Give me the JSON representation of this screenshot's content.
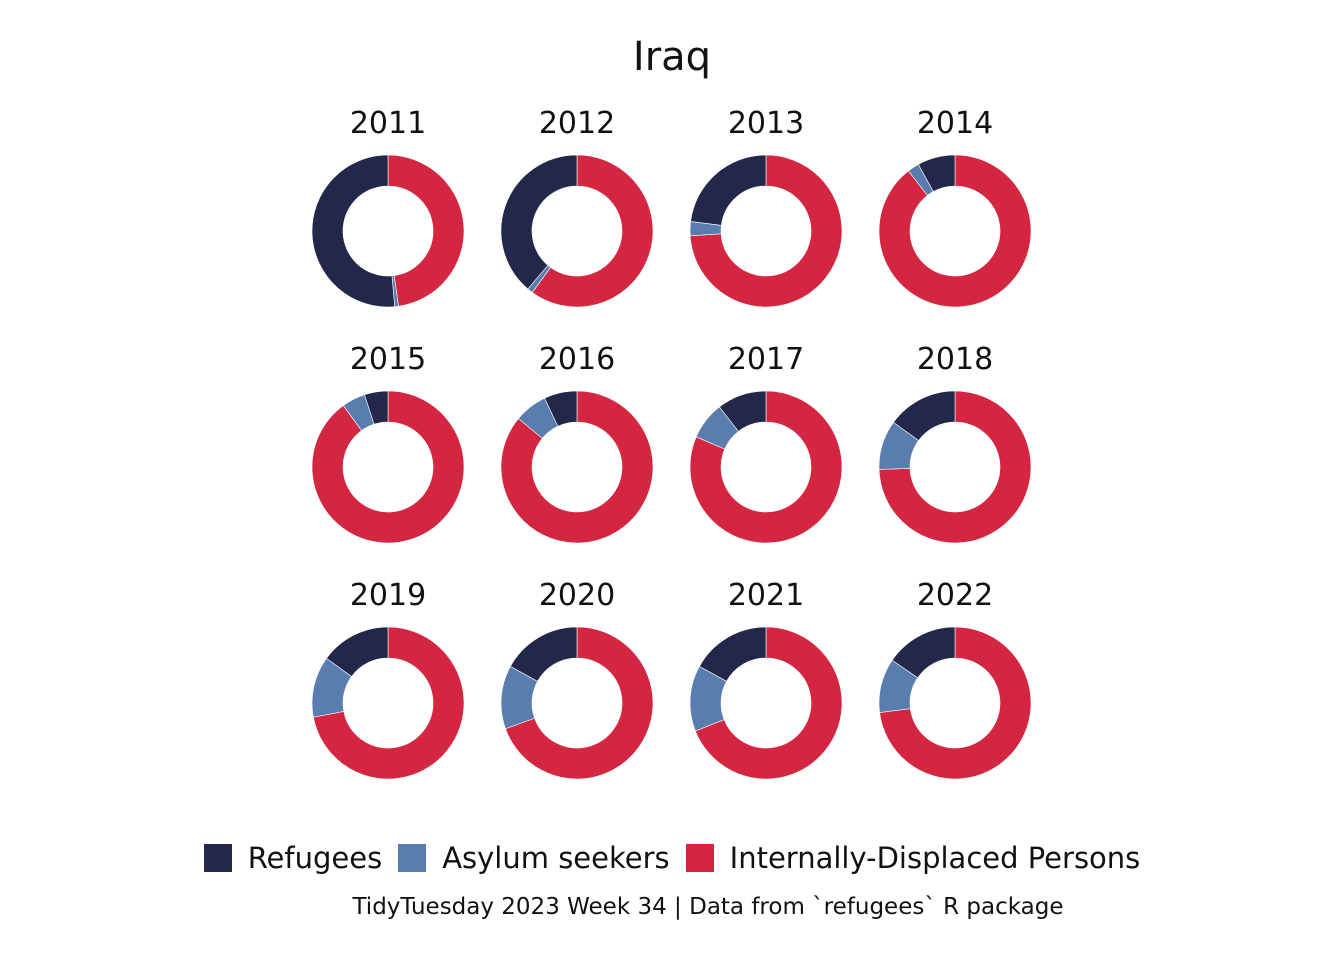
{
  "chart_data": {
    "type": "pie",
    "subtype": "donut-small-multiples",
    "title": "Iraq",
    "caption": "TidyTuesday 2023 Week 34 | Data from `refugees` R package",
    "legend_position": "bottom",
    "series": [
      {
        "key": "refugees",
        "name": "Refugees",
        "color": "#23284a"
      },
      {
        "key": "asylum",
        "name": "Asylum seekers",
        "color": "#5a7daf"
      },
      {
        "key": "idp",
        "name": "Internally-Displaced Persons",
        "color": "#d42640"
      }
    ],
    "panels": [
      {
        "year": "2011",
        "refugees": 51.4,
        "asylum": 0.8,
        "idp": 47.8
      },
      {
        "year": "2012",
        "refugees": 38.8,
        "asylum": 1.2,
        "idp": 60.0
      },
      {
        "year": "2013",
        "refugees": 23.0,
        "asylum": 3.0,
        "idp": 74.0
      },
      {
        "year": "2014",
        "refugees": 8.0,
        "asylum": 2.5,
        "idp": 89.5
      },
      {
        "year": "2015",
        "refugees": 5.0,
        "asylum": 5.0,
        "idp": 90.0
      },
      {
        "year": "2016",
        "refugees": 7.0,
        "asylum": 7.0,
        "idp": 86.0
      },
      {
        "year": "2017",
        "refugees": 10.5,
        "asylum": 8.0,
        "idp": 81.5
      },
      {
        "year": "2018",
        "refugees": 15.0,
        "asylum": 10.5,
        "idp": 74.5
      },
      {
        "year": "2019",
        "refugees": 15.0,
        "asylum": 13.0,
        "idp": 72.0
      },
      {
        "year": "2020",
        "refugees": 17.0,
        "asylum": 13.5,
        "idp": 69.5
      },
      {
        "year": "2021",
        "refugees": 17.0,
        "asylum": 14.0,
        "idp": 69.0
      },
      {
        "year": "2022",
        "refugees": 15.5,
        "asylum": 11.5,
        "idp": 73.0
      }
    ]
  }
}
